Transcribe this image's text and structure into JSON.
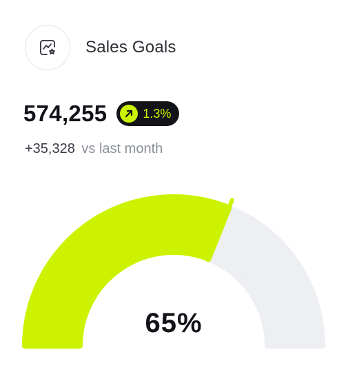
{
  "header": {
    "icon": "chart-badge-icon",
    "title": "Sales Goals"
  },
  "metric": {
    "value": "574,255",
    "change_icon": "arrow-up-right-icon",
    "change": "1.3%"
  },
  "comparison": {
    "delta": "+35,328",
    "label": "vs last month"
  },
  "gauge": {
    "percent": 65,
    "label": "65%",
    "fill_color": "#cdf200",
    "track_color": "#edeff2"
  }
}
